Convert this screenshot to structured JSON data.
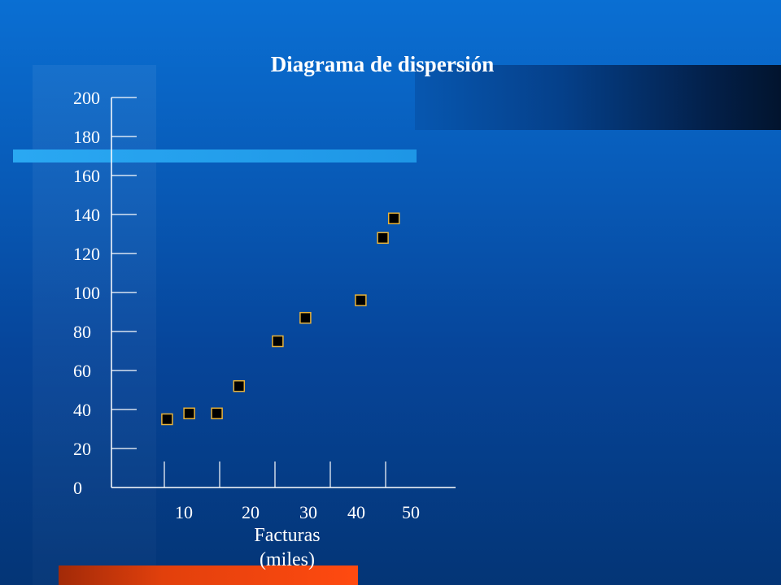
{
  "chart_data": {
    "type": "scatter",
    "title": "Diagrama de dispersión",
    "xlabel_line1": "Facturas",
    "xlabel_line2": "(miles)",
    "ylabel": "",
    "x_ticks": [
      10,
      20,
      30,
      40,
      50
    ],
    "y_ticks": [
      0,
      20,
      40,
      60,
      80,
      100,
      120,
      140,
      160,
      180,
      200
    ],
    "xlim": [
      0,
      52
    ],
    "ylim": [
      0,
      200
    ],
    "grid": false,
    "legend": "none",
    "points": [
      {
        "x": 10,
        "y": 35
      },
      {
        "x": 14,
        "y": 38
      },
      {
        "x": 19,
        "y": 38
      },
      {
        "x": 23,
        "y": 52
      },
      {
        "x": 30,
        "y": 75
      },
      {
        "x": 35,
        "y": 87
      },
      {
        "x": 45,
        "y": 96
      },
      {
        "x": 49,
        "y": 128
      },
      {
        "x": 51,
        "y": 138
      }
    ],
    "marker_fill": "#000000",
    "marker_stroke": "#e8b33a",
    "axis_color": "#ffffff"
  }
}
